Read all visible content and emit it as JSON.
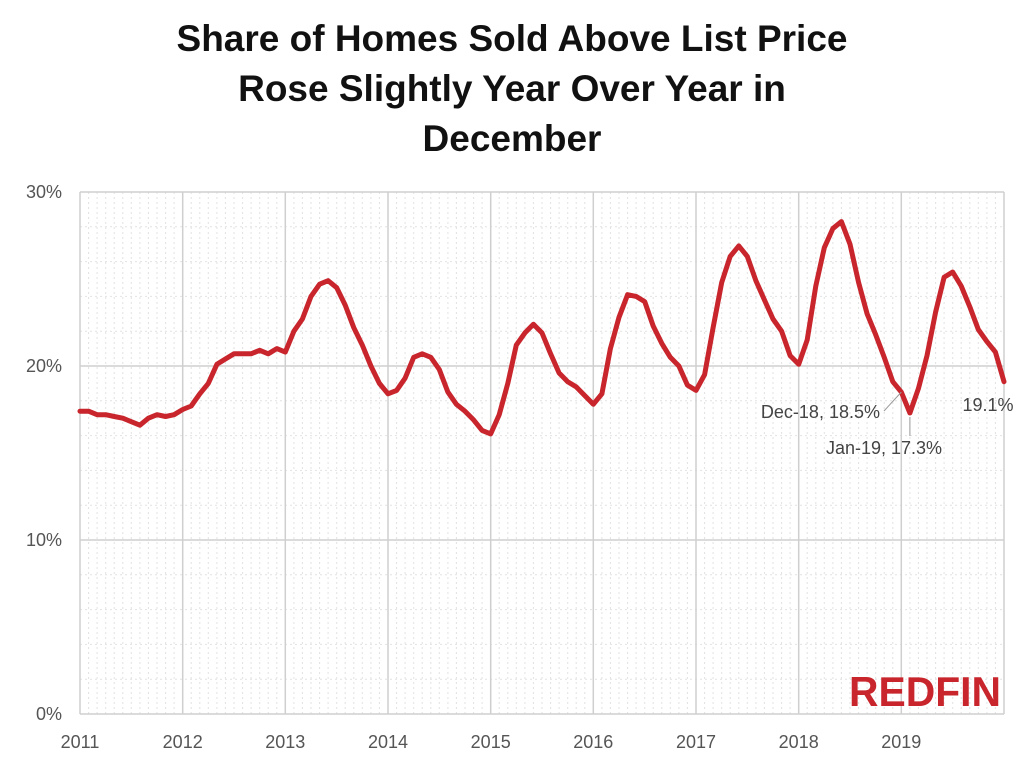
{
  "chart_data": {
    "type": "line",
    "title_lines": [
      "Share of Homes Sold Above List Price",
      "Rose Slightly Year Over Year in",
      "December"
    ],
    "xlabel": "",
    "ylabel": "",
    "x_ticks": [
      "2011",
      "2012",
      "2013",
      "2014",
      "2015",
      "2016",
      "2017",
      "2018",
      "2019"
    ],
    "y_ticks": [
      "0%",
      "10%",
      "20%",
      "30%"
    ],
    "y_tick_values": [
      0,
      10,
      20,
      30
    ],
    "ylim": [
      0,
      30
    ],
    "x_start": "2011-01",
    "grid": true,
    "series": [
      {
        "color": "#c8252c",
        "values": [
          17.4,
          17.4,
          17.2,
          17.2,
          17.1,
          17.0,
          16.8,
          16.6,
          17.0,
          17.2,
          17.1,
          17.2,
          17.5,
          17.7,
          18.4,
          19.0,
          20.1,
          20.4,
          20.7,
          20.7,
          20.7,
          20.9,
          20.7,
          21.0,
          20.8,
          22.0,
          22.7,
          24.0,
          24.7,
          24.9,
          24.5,
          23.5,
          22.2,
          21.2,
          20.0,
          19.0,
          18.4,
          18.6,
          19.3,
          20.5,
          20.7,
          20.5,
          19.8,
          18.5,
          17.8,
          17.4,
          16.9,
          16.3,
          16.1,
          17.2,
          19.0,
          21.2,
          21.9,
          22.4,
          21.9,
          20.7,
          19.6,
          19.1,
          18.8,
          18.3,
          17.8,
          18.4,
          21.0,
          22.8,
          24.1,
          24.0,
          23.7,
          22.3,
          21.3,
          20.5,
          20.0,
          18.9,
          18.6,
          19.5,
          22.2,
          24.8,
          26.3,
          26.9,
          26.3,
          24.9,
          23.8,
          22.7,
          22.0,
          20.6,
          20.1,
          21.5,
          24.6,
          26.8,
          27.9,
          28.3,
          27.0,
          24.8,
          23.0,
          21.8,
          20.5,
          19.1,
          18.5,
          17.3,
          18.7,
          20.6,
          23.1,
          25.1,
          25.4,
          24.6,
          23.4,
          22.1,
          21.4,
          20.8,
          19.1
        ]
      }
    ],
    "annotations": [
      {
        "label": "Dec-18, 18.5%",
        "index": 96
      },
      {
        "label": "Jan-19, 17.3%",
        "index": 97
      },
      {
        "label": "19.1%",
        "index": 108
      }
    ]
  },
  "brand": {
    "logo_text": "REDFIN",
    "color": "#c8252c"
  }
}
